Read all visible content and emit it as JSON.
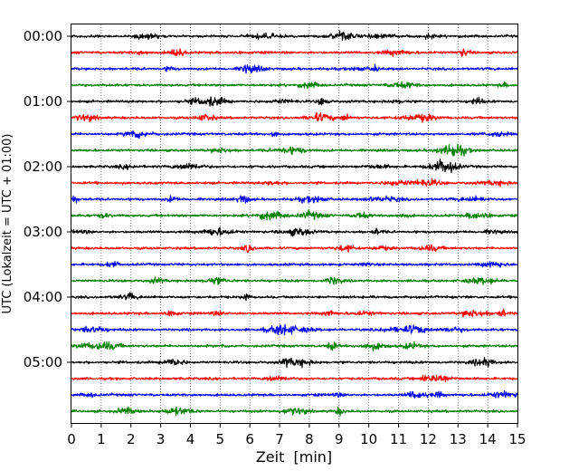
{
  "chart_data": {
    "type": "line",
    "title": "",
    "xlabel": "Zeit  [min]",
    "ylabel": "UTC (Lokalzeit = UTC + 01:00)",
    "xlim": [
      0,
      15
    ],
    "x_ticks": [
      0,
      1,
      2,
      3,
      4,
      5,
      6,
      7,
      8,
      9,
      10,
      11,
      12,
      13,
      14,
      15
    ],
    "grid": "vertical-dotted",
    "y_tick_labels": [
      "00:00",
      "01:00",
      "02:00",
      "03:00",
      "04:00",
      "05:00"
    ],
    "trace_interval_min": 15,
    "trace_count": 24,
    "trace_colors": [
      "#000000",
      "#ff0000",
      "#0000ff",
      "#008000"
    ],
    "traces": [
      {
        "start": "00:00",
        "color": "#000000"
      },
      {
        "start": "00:15",
        "color": "#ff0000"
      },
      {
        "start": "00:30",
        "color": "#0000ff"
      },
      {
        "start": "00:45",
        "color": "#008000"
      },
      {
        "start": "01:00",
        "color": "#000000"
      },
      {
        "start": "01:15",
        "color": "#ff0000"
      },
      {
        "start": "01:30",
        "color": "#0000ff"
      },
      {
        "start": "01:45",
        "color": "#008000"
      },
      {
        "start": "02:00",
        "color": "#000000"
      },
      {
        "start": "02:15",
        "color": "#ff0000"
      },
      {
        "start": "02:30",
        "color": "#0000ff"
      },
      {
        "start": "02:45",
        "color": "#008000"
      },
      {
        "start": "03:00",
        "color": "#000000"
      },
      {
        "start": "03:15",
        "color": "#ff0000"
      },
      {
        "start": "03:30",
        "color": "#0000ff"
      },
      {
        "start": "03:45",
        "color": "#008000"
      },
      {
        "start": "04:00",
        "color": "#000000"
      },
      {
        "start": "04:15",
        "color": "#ff0000"
      },
      {
        "start": "04:30",
        "color": "#0000ff"
      },
      {
        "start": "04:45",
        "color": "#008000"
      },
      {
        "start": "05:00",
        "color": "#000000"
      },
      {
        "start": "05:15",
        "color": "#ff0000"
      },
      {
        "start": "05:30",
        "color": "#0000ff"
      },
      {
        "start": "05:45",
        "color": "#008000"
      }
    ]
  }
}
